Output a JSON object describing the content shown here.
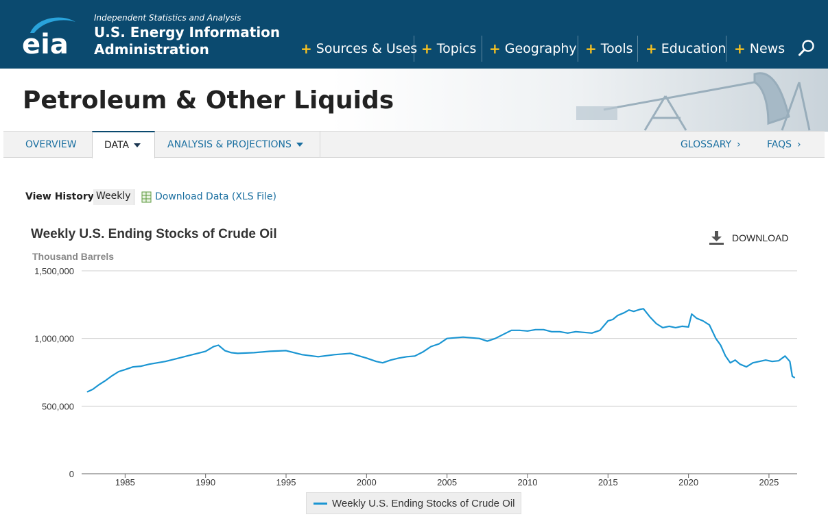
{
  "header": {
    "tagline": "Independent Statistics and Analysis",
    "brand_line1": "U.S. Energy Information",
    "brand_line2": "Administration",
    "logo_text": "eia",
    "nav": [
      "Sources & Uses",
      "Topics",
      "Geography",
      "Tools",
      "Education",
      "News"
    ],
    "search_icon": "search-icon"
  },
  "banner": {
    "title": "Petroleum & Other Liquids"
  },
  "subnav": {
    "overview": "OVERVIEW",
    "data": "DATA",
    "analysis": "ANALYSIS & PROJECTIONS",
    "glossary": "GLOSSARY",
    "faqs": "FAQS"
  },
  "view_history": {
    "label": "View History:",
    "selected": "Weekly",
    "download_link": "Download Data (XLS File)"
  },
  "chart_toolbar": {
    "download_label": "DOWNLOAD"
  },
  "colors": {
    "header_bg": "#0b4a6f",
    "accent_plus": "#f7c221",
    "link": "#1a6fa0",
    "series": "#1a95d2"
  },
  "chart_data": {
    "type": "line",
    "title": "Weekly U.S. Ending Stocks of Crude Oil",
    "ylabel": "Thousand Barrels",
    "ylim": [
      0,
      1500000
    ],
    "xlim": [
      1982.3,
      2026.75
    ],
    "y_ticks": [
      0,
      500000,
      1000000,
      1500000
    ],
    "y_tick_labels": [
      "0",
      "500,000",
      "1,000,000",
      "1,500,000"
    ],
    "x_ticks": [
      1985,
      1990,
      1995,
      2000,
      2005,
      2010,
      2015,
      2020,
      2025
    ],
    "x_tick_labels": [
      "1985",
      "1990",
      "1995",
      "2000",
      "2005",
      "2010",
      "2015",
      "2020",
      "2025"
    ],
    "grid": true,
    "legend": "bottom-center",
    "series": [
      {
        "name": "Weekly U.S. Ending Stocks of Crude Oil",
        "color": "#1a95d2",
        "x": [
          1982.65,
          1983.0,
          1983.4,
          1983.8,
          1984.2,
          1984.6,
          1985.0,
          1985.5,
          1986.0,
          1986.5,
          1987.0,
          1987.5,
          1988.0,
          1988.5,
          1989.0,
          1989.5,
          1990.0,
          1990.5,
          1990.8,
          1991.2,
          1991.6,
          1992.0,
          1993.0,
          1994.0,
          1995.0,
          1996.0,
          1997.0,
          1998.0,
          1999.0,
          2000.0,
          2000.6,
          2001.0,
          2001.5,
          2002.0,
          2002.5,
          2003.0,
          2003.5,
          2004.0,
          2004.5,
          2005.0,
          2005.5,
          2006.0,
          2006.5,
          2007.0,
          2007.5,
          2008.0,
          2008.5,
          2009.0,
          2009.5,
          2010.0,
          2010.5,
          2011.0,
          2011.5,
          2012.0,
          2012.5,
          2013.0,
          2013.5,
          2014.0,
          2014.5,
          2015.0,
          2015.3,
          2015.6,
          2016.0,
          2016.3,
          2016.6,
          2017.0,
          2017.2,
          2017.6,
          2018.0,
          2018.4,
          2018.8,
          2019.2,
          2019.6,
          2020.0,
          2020.2,
          2020.5,
          2020.9,
          2021.3,
          2021.7,
          2022.0,
          2022.3,
          2022.6,
          2022.9,
          2023.2,
          2023.6,
          2024.0,
          2024.4,
          2024.8,
          2025.2,
          2025.6,
          2026.0,
          2026.3,
          2026.45,
          2026.6
        ],
        "y": [
          605000,
          625000,
          660000,
          690000,
          725000,
          755000,
          770000,
          790000,
          795000,
          810000,
          820000,
          830000,
          845000,
          860000,
          875000,
          890000,
          905000,
          940000,
          950000,
          910000,
          895000,
          890000,
          895000,
          905000,
          910000,
          880000,
          865000,
          880000,
          890000,
          855000,
          830000,
          820000,
          840000,
          855000,
          865000,
          870000,
          900000,
          940000,
          960000,
          1000000,
          1005000,
          1010000,
          1005000,
          1000000,
          980000,
          1000000,
          1030000,
          1060000,
          1060000,
          1055000,
          1065000,
          1065000,
          1050000,
          1050000,
          1040000,
          1050000,
          1045000,
          1040000,
          1060000,
          1130000,
          1140000,
          1170000,
          1190000,
          1210000,
          1200000,
          1215000,
          1220000,
          1160000,
          1110000,
          1080000,
          1090000,
          1080000,
          1090000,
          1085000,
          1180000,
          1150000,
          1130000,
          1100000,
          1000000,
          950000,
          870000,
          820000,
          840000,
          810000,
          790000,
          820000,
          830000,
          840000,
          830000,
          835000,
          870000,
          830000,
          720000,
          710000
        ]
      }
    ]
  }
}
